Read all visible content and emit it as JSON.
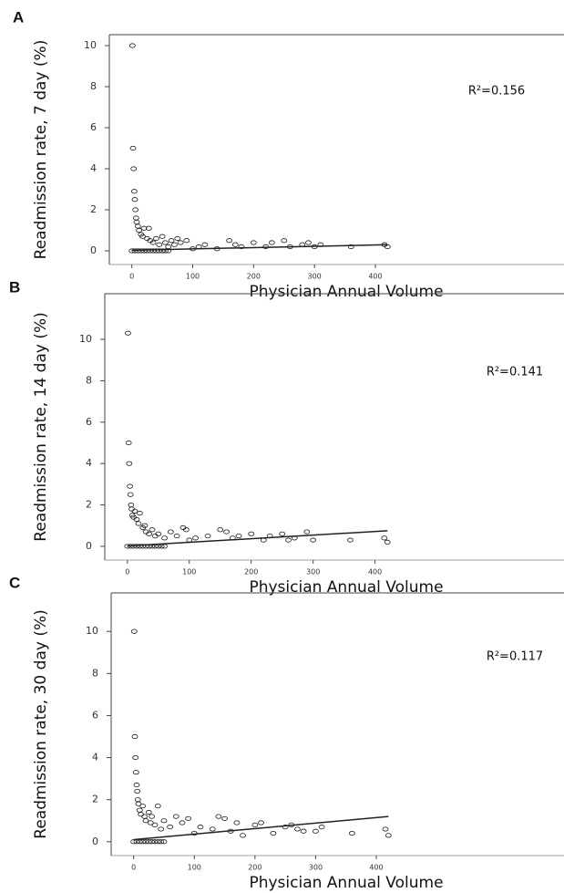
{
  "chart_data": [
    {
      "type": "scatter",
      "panel_label": "A",
      "annotation": "R²=0.156",
      "x_label": "Physician Annual Volume",
      "y_label": "Readmission rate, 7 day (%)",
      "xlim": [
        -10,
        430
      ],
      "ylim": [
        -0.4,
        10.4
      ],
      "xticks": [
        0,
        100,
        200,
        300,
        400
      ],
      "yticks": [
        0,
        2,
        4,
        6,
        8,
        10
      ],
      "color": "#222",
      "x": [
        0,
        5,
        10,
        15,
        20,
        25,
        30,
        35,
        40,
        45,
        50,
        55,
        60,
        1,
        2,
        3,
        4,
        5,
        6,
        7,
        8,
        10,
        12,
        15,
        18,
        20,
        25,
        28,
        30,
        35,
        40,
        45,
        50,
        55,
        60,
        65,
        70,
        75,
        80,
        90,
        100,
        110,
        120,
        140,
        160,
        170,
        180,
        200,
        220,
        230,
        250,
        260,
        280,
        290,
        300,
        310,
        360,
        415,
        420
      ],
      "values": [
        0,
        0,
        0,
        0,
        0,
        0,
        0,
        0,
        0,
        0,
        0,
        0,
        0,
        10,
        5,
        4,
        2.9,
        2.5,
        2,
        1.6,
        1.4,
        1.2,
        1,
        0.8,
        0.7,
        1.1,
        0.6,
        1.1,
        0.5,
        0.4,
        0.6,
        0.3,
        0.7,
        0.4,
        0.2,
        0.5,
        0.3,
        0.6,
        0.4,
        0.5,
        0.1,
        0.2,
        0.3,
        0.1,
        0.5,
        0.3,
        0.2,
        0.4,
        0.2,
        0.4,
        0.5,
        0.2,
        0.3,
        0.4,
        0.2,
        0.3,
        0.2,
        0.3,
        0.2
      ],
      "fit": {
        "x": [
          0,
          420
        ],
        "values": [
          0.03,
          0.3
        ]
      }
    },
    {
      "type": "scatter",
      "panel_label": "B",
      "annotation": "R²=0.141",
      "x_label": "Physician Annual Volume",
      "y_label": "Readmission rate, 14 day (%)",
      "xlim": [
        -10,
        430
      ],
      "ylim": [
        -0.4,
        10.4
      ],
      "xticks": [
        0,
        100,
        200,
        300,
        400
      ],
      "yticks": [
        0,
        2,
        4,
        6,
        8,
        10
      ],
      "color": "#222",
      "x": [
        0,
        5,
        10,
        15,
        20,
        25,
        30,
        35,
        40,
        45,
        50,
        55,
        60,
        1,
        2,
        3,
        4,
        5,
        6,
        7,
        8,
        10,
        12,
        15,
        18,
        20,
        25,
        28,
        30,
        35,
        40,
        45,
        50,
        60,
        70,
        80,
        90,
        95,
        100,
        110,
        130,
        150,
        160,
        170,
        180,
        200,
        220,
        230,
        250,
        260,
        270,
        290,
        300,
        360,
        415,
        420
      ],
      "values": [
        0,
        0,
        0,
        0,
        0,
        0,
        0,
        0,
        0,
        0,
        0,
        0,
        0,
        10.3,
        5,
        4,
        2.9,
        2.5,
        2,
        1.8,
        1.5,
        1.4,
        1.7,
        1.3,
        1.1,
        1.6,
        0.9,
        1,
        0.7,
        0.6,
        0.8,
        0.5,
        0.6,
        0.4,
        0.7,
        0.5,
        0.9,
        0.8,
        0.3,
        0.4,
        0.5,
        0.8,
        0.7,
        0.4,
        0.5,
        0.6,
        0.3,
        0.5,
        0.6,
        0.3,
        0.4,
        0.7,
        0.3,
        0.3,
        0.4,
        0.2
      ],
      "fit": {
        "x": [
          0,
          420
        ],
        "values": [
          0.02,
          0.75
        ]
      }
    },
    {
      "type": "scatter",
      "panel_label": "C",
      "annotation": "R²=0.117",
      "x_label": "Physician Annual Volume",
      "y_label": "Readmission rate, 30 day (%)",
      "xlim": [
        -10,
        430
      ],
      "ylim": [
        -0.4,
        10.4
      ],
      "xticks": [
        0,
        100,
        200,
        300,
        400
      ],
      "yticks": [
        0,
        2,
        4,
        6,
        8,
        10
      ],
      "color": "#222",
      "x": [
        0,
        5,
        10,
        15,
        20,
        25,
        30,
        35,
        40,
        45,
        50,
        1,
        2,
        3,
        4,
        5,
        6,
        7,
        8,
        10,
        12,
        15,
        18,
        20,
        25,
        28,
        30,
        35,
        40,
        45,
        50,
        60,
        70,
        80,
        90,
        100,
        110,
        130,
        140,
        150,
        160,
        170,
        180,
        200,
        210,
        230,
        250,
        260,
        270,
        280,
        300,
        310,
        360,
        415,
        420
      ],
      "values": [
        0,
        0,
        0,
        0,
        0,
        0,
        0,
        0,
        0,
        0,
        0,
        10,
        5,
        4,
        3.3,
        2.7,
        2.4,
        2,
        1.8,
        1.5,
        1.3,
        1.7,
        1.2,
        1,
        1.4,
        0.9,
        1.2,
        0.8,
        1.7,
        0.6,
        1,
        0.7,
        1.2,
        0.9,
        1.1,
        0.4,
        0.7,
        0.6,
        1.2,
        1.1,
        0.5,
        0.9,
        0.3,
        0.8,
        0.9,
        0.4,
        0.7,
        0.8,
        0.6,
        0.5,
        0.5,
        0.7,
        0.4,
        0.6,
        0.3
      ],
      "fit": {
        "x": [
          0,
          420
        ],
        "values": [
          0.1,
          1.2
        ]
      }
    }
  ]
}
